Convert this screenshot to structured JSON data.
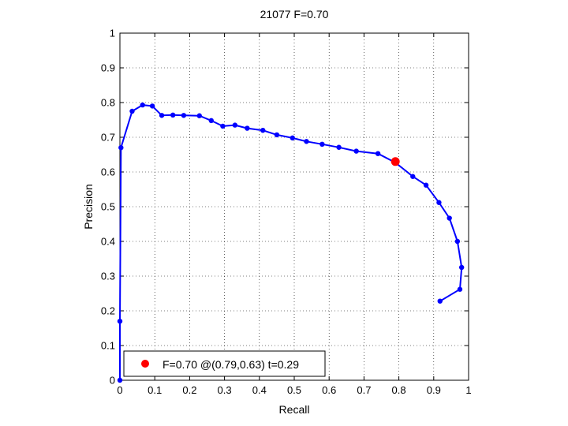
{
  "chart_data": {
    "type": "line",
    "title": "21077 F=0.70",
    "xlabel": "Recall",
    "ylabel": "Precision",
    "xlim": [
      0,
      1
    ],
    "ylim": [
      0,
      1
    ],
    "grid": true,
    "x_ticks": [
      "0",
      "0.1",
      "0.2",
      "0.3",
      "0.4",
      "0.5",
      "0.6",
      "0.7",
      "0.8",
      "0.9",
      "1"
    ],
    "y_ticks": [
      "0",
      "0.1",
      "0.2",
      "0.3",
      "0.4",
      "0.5",
      "0.6",
      "0.7",
      "0.8",
      "0.9",
      "1"
    ],
    "series": [
      {
        "color": "#0000ff",
        "points": [
          [
            0.0,
            0.0
          ],
          [
            0.0,
            0.17
          ],
          [
            0.003,
            0.67
          ],
          [
            0.035,
            0.775
          ],
          [
            0.065,
            0.793
          ],
          [
            0.093,
            0.79
          ],
          [
            0.12,
            0.763
          ],
          [
            0.152,
            0.764
          ],
          [
            0.183,
            0.763
          ],
          [
            0.228,
            0.762
          ],
          [
            0.262,
            0.748
          ],
          [
            0.295,
            0.732
          ],
          [
            0.33,
            0.735
          ],
          [
            0.365,
            0.726
          ],
          [
            0.41,
            0.72
          ],
          [
            0.45,
            0.707
          ],
          [
            0.495,
            0.698
          ],
          [
            0.535,
            0.688
          ],
          [
            0.58,
            0.68
          ],
          [
            0.628,
            0.671
          ],
          [
            0.678,
            0.66
          ],
          [
            0.74,
            0.653
          ],
          [
            0.79,
            0.627
          ],
          [
            0.84,
            0.587
          ],
          [
            0.878,
            0.562
          ],
          [
            0.915,
            0.512
          ],
          [
            0.945,
            0.467
          ],
          [
            0.968,
            0.4
          ],
          [
            0.98,
            0.325
          ],
          [
            0.975,
            0.262
          ],
          [
            0.918,
            0.228
          ]
        ]
      }
    ],
    "highlight": {
      "x": 0.79,
      "y": 0.63,
      "color": "#ff0000"
    },
    "legend": {
      "location": "bottom-left",
      "label": "F=0.70 @(0.79,0.63) t=0.29"
    }
  }
}
